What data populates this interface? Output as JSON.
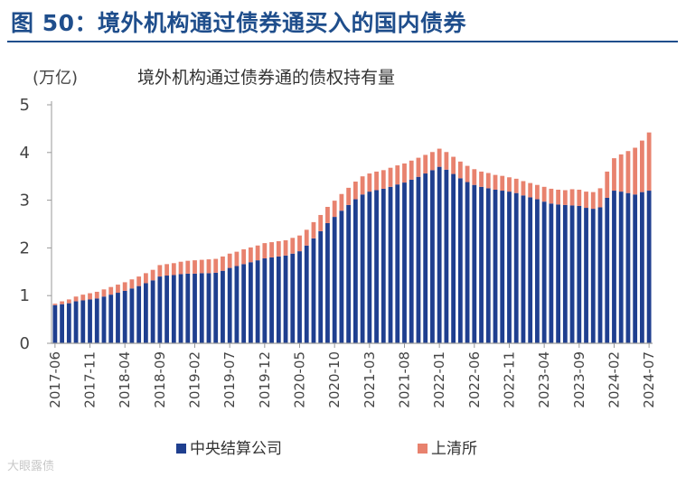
{
  "figure": {
    "title": "图 50：境外机构通过债券通买入的国内债券"
  },
  "footer": {
    "watermark": "大眼露债"
  },
  "colors": {
    "title": "#1f4e8c",
    "ccdc": "#1f3f8f",
    "shch": "#e8826e",
    "axis": "#9a9a9a"
  },
  "chart_data": {
    "type": "bar",
    "stacked": true,
    "title": "境外机构通过债券通的债权持有量",
    "ylabel": "(万亿)",
    "ylim": [
      0,
      5
    ],
    "yticks": [
      "0",
      "1",
      "2",
      "3",
      "4",
      "5"
    ],
    "x_tick_labels": [
      "2017-06",
      "2017-11",
      "2018-04",
      "2018-09",
      "2019-02",
      "2019-07",
      "2019-12",
      "2020-05",
      "2020-10",
      "2021-03",
      "2021-08",
      "2022-01",
      "2022-06",
      "2022-11",
      "2023-04",
      "2023-09",
      "2024-02",
      "2024-07"
    ],
    "legend": {
      "position": "bottom",
      "entries": [
        "中央结算公司",
        "上清所"
      ]
    },
    "categories": [
      "2017-06",
      "2017-07",
      "2017-08",
      "2017-09",
      "2017-10",
      "2017-11",
      "2017-12",
      "2018-01",
      "2018-02",
      "2018-03",
      "2018-04",
      "2018-05",
      "2018-06",
      "2018-07",
      "2018-08",
      "2018-09",
      "2018-10",
      "2018-11",
      "2018-12",
      "2019-01",
      "2019-02",
      "2019-03",
      "2019-04",
      "2019-05",
      "2019-06",
      "2019-07",
      "2019-08",
      "2019-09",
      "2019-10",
      "2019-11",
      "2019-12",
      "2020-01",
      "2020-02",
      "2020-03",
      "2020-04",
      "2020-05",
      "2020-06",
      "2020-07",
      "2020-08",
      "2020-09",
      "2020-10",
      "2020-11",
      "2020-12",
      "2021-01",
      "2021-02",
      "2021-03",
      "2021-04",
      "2021-05",
      "2021-06",
      "2021-07",
      "2021-08",
      "2021-09",
      "2021-10",
      "2021-11",
      "2021-12",
      "2022-01",
      "2022-02",
      "2022-03",
      "2022-04",
      "2022-05",
      "2022-06",
      "2022-07",
      "2022-08",
      "2022-09",
      "2022-10",
      "2022-11",
      "2022-12",
      "2023-01",
      "2023-02",
      "2023-03",
      "2023-04",
      "2023-05",
      "2023-06",
      "2023-07",
      "2023-08",
      "2023-09",
      "2023-10",
      "2023-11",
      "2023-12",
      "2024-01",
      "2024-02",
      "2024-03",
      "2024-04",
      "2024-05",
      "2024-06",
      "2024-07"
    ],
    "series": [
      {
        "name": "中央结算公司",
        "color": "#1f3f8f",
        "values": [
          0.8,
          0.82,
          0.84,
          0.88,
          0.9,
          0.92,
          0.94,
          0.98,
          1.02,
          1.06,
          1.1,
          1.15,
          1.2,
          1.26,
          1.32,
          1.4,
          1.42,
          1.43,
          1.45,
          1.46,
          1.46,
          1.47,
          1.47,
          1.48,
          1.52,
          1.58,
          1.62,
          1.66,
          1.7,
          1.74,
          1.78,
          1.8,
          1.82,
          1.84,
          1.88,
          1.93,
          2.05,
          2.2,
          2.35,
          2.52,
          2.65,
          2.78,
          2.9,
          3.02,
          3.12,
          3.18,
          3.21,
          3.24,
          3.28,
          3.33,
          3.37,
          3.43,
          3.49,
          3.56,
          3.63,
          3.7,
          3.64,
          3.55,
          3.46,
          3.38,
          3.32,
          3.28,
          3.25,
          3.22,
          3.2,
          3.18,
          3.15,
          3.1,
          3.06,
          3.02,
          2.97,
          2.93,
          2.91,
          2.9,
          2.89,
          2.88,
          2.84,
          2.82,
          2.85,
          3.05,
          3.2,
          3.18,
          3.15,
          3.12,
          3.17,
          3.2
        ]
      },
      {
        "name": "上清所",
        "color": "#e8826e",
        "values": [
          0.03,
          0.06,
          0.08,
          0.1,
          0.12,
          0.13,
          0.14,
          0.15,
          0.16,
          0.17,
          0.18,
          0.19,
          0.2,
          0.21,
          0.22,
          0.24,
          0.24,
          0.25,
          0.26,
          0.27,
          0.28,
          0.28,
          0.29,
          0.29,
          0.3,
          0.3,
          0.3,
          0.31,
          0.31,
          0.31,
          0.32,
          0.32,
          0.32,
          0.32,
          0.33,
          0.33,
          0.33,
          0.34,
          0.34,
          0.34,
          0.34,
          0.35,
          0.36,
          0.37,
          0.38,
          0.38,
          0.39,
          0.39,
          0.4,
          0.4,
          0.4,
          0.4,
          0.4,
          0.39,
          0.38,
          0.38,
          0.37,
          0.36,
          0.35,
          0.34,
          0.33,
          0.32,
          0.32,
          0.31,
          0.31,
          0.3,
          0.3,
          0.3,
          0.3,
          0.3,
          0.31,
          0.31,
          0.31,
          0.31,
          0.34,
          0.34,
          0.34,
          0.35,
          0.4,
          0.55,
          0.68,
          0.78,
          0.88,
          0.98,
          1.08,
          1.22
        ]
      }
    ]
  }
}
